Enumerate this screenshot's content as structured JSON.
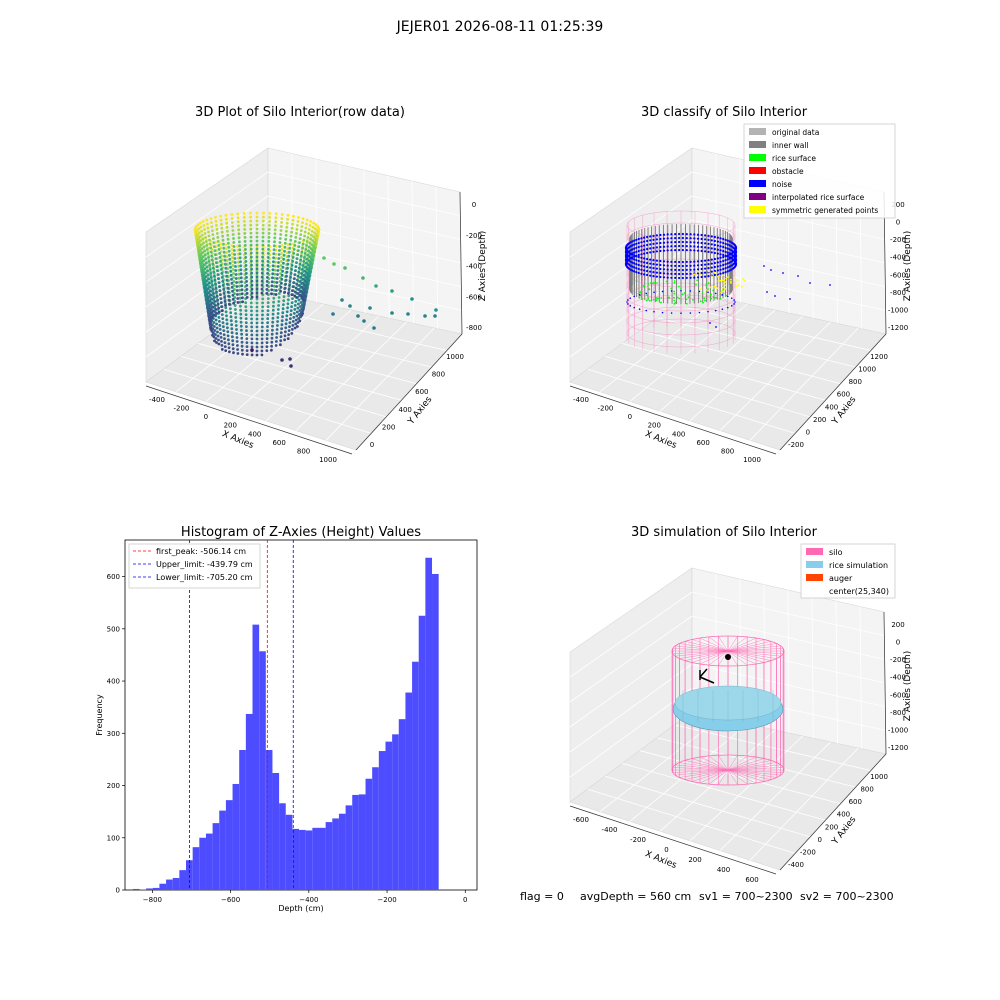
{
  "figure_title": "JEJER01 2026-08-11 01:25:39",
  "footer": {
    "flag": "flag = 0",
    "avg_depth": "avgDepth = 560 cm",
    "sv1": "sv1 = 700~2300",
    "sv2": "sv2 = 700~2300"
  },
  "colors": {
    "original_data": "#b3b3b3",
    "inner_wall": "#808080",
    "rice_surface": "#00ff00",
    "obstacle": "#ff0000",
    "noise": "#0000ff",
    "interpolated": "#800080",
    "symmetric": "#ffff00",
    "silo": "#ff69b4",
    "rice_sim": "#87ceeb",
    "auger": "#ff4500",
    "hist_bar": "#4d4dff"
  },
  "chart_data": [
    {
      "type": "scatter",
      "title": "3D Plot of Silo Interior(row data)",
      "xlabel": "X Axies",
      "ylabel": "Y Axies",
      "zlabel": "Z Axies (Depth)",
      "x_ticks": [
        "-400",
        "-200",
        "0",
        "200",
        "400",
        "600",
        "800",
        "1000"
      ],
      "y_ticks": [
        "0",
        "200",
        "400",
        "600",
        "800",
        "1000"
      ],
      "z_ticks": [
        "0",
        "-200",
        "-400",
        "-600",
        "-800"
      ],
      "xlim": [
        -450,
        1050
      ],
      "ylim": [
        -100,
        1100
      ],
      "zlim": [
        -900,
        0
      ],
      "colormap": "viridis"
    },
    {
      "type": "scatter",
      "title": "3D classify of Silo Interior",
      "xlabel": "X Axies",
      "ylabel": "Y Axies",
      "zlabel": "Z Axies (Depth)",
      "x_ticks": [
        "-400",
        "-200",
        "0",
        "200",
        "400",
        "600",
        "800",
        "1000"
      ],
      "y_ticks": [
        "-200",
        "0",
        "200",
        "400",
        "600",
        "800",
        "1000",
        "1200"
      ],
      "z_ticks": [
        "200",
        "0",
        "-200",
        "-400",
        "-600",
        "-800",
        "-1000",
        "-1200"
      ],
      "legend": [
        "original data",
        "inner wall",
        "rice surface",
        "obstacle",
        "noise",
        "interpolated rice surface",
        "symmetric generated points"
      ],
      "legend_position": "top-right"
    },
    {
      "type": "bar",
      "title": "Histogram of Z-Axies (Height) Values",
      "xlabel": "Depth (cm)",
      "ylabel": "Frequency",
      "xlim": [
        -870,
        30
      ],
      "ylim": [
        0,
        670
      ],
      "x_ticks": [
        -800,
        -600,
        -400,
        -200,
        0
      ],
      "y_ticks": [
        0,
        100,
        200,
        300,
        400,
        500,
        600
      ],
      "bin_start": -850,
      "bin_width": 17,
      "values": [
        2,
        1,
        3,
        4,
        12,
        20,
        23,
        38,
        57,
        82,
        100,
        108,
        128,
        152,
        172,
        203,
        268,
        337,
        508,
        457,
        268,
        224,
        166,
        144,
        117,
        115,
        114,
        119,
        119,
        130,
        137,
        146,
        162,
        182,
        183,
        213,
        235,
        266,
        284,
        298,
        327,
        378,
        437,
        525,
        636,
        605
      ],
      "lines": [
        {
          "label": "first_peak: -506.14 cm",
          "x": -506.14,
          "color": "#ff0000"
        },
        {
          "label": "Upper_limit: -439.79 cm",
          "x": -439.79,
          "color": "#0000ff"
        },
        {
          "label": "Lower_limit: -705.20 cm",
          "x": -705.2,
          "color": "#0000ff"
        }
      ],
      "legend_position": "top-left"
    },
    {
      "type": "scatter",
      "title": "3D simulation of Silo Interior",
      "xlabel": "X Axies",
      "ylabel": "Y Axies",
      "zlabel": "Z Axies (Depth)",
      "x_ticks": [
        "-600",
        "-400",
        "-200",
        "0",
        "200",
        "400",
        "600"
      ],
      "y_ticks": [
        "-400",
        "-200",
        "0",
        "200",
        "400",
        "600",
        "800",
        "1000"
      ],
      "z_ticks": [
        "200",
        "0",
        "-200",
        "-400",
        "-600",
        "-800",
        "-1000",
        "-1200"
      ],
      "legend": [
        "silo",
        "rice simulation",
        "auger",
        "center(25,340)"
      ],
      "legend_position": "top-right"
    }
  ]
}
